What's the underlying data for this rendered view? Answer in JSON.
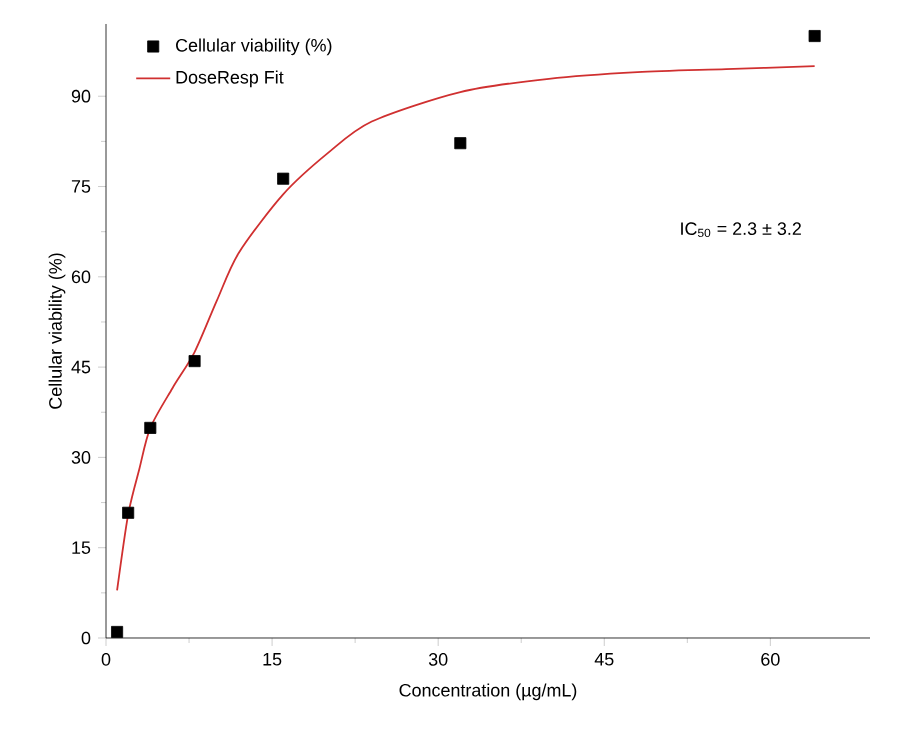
{
  "chart_data": {
    "type": "scatter",
    "xlabel": "Concentration (µg/mL)",
    "ylabel": "Cellular viability (%)",
    "xlim": [
      0,
      69
    ],
    "ylim": [
      0,
      102
    ],
    "xticks": [
      0,
      15,
      30,
      45,
      60
    ],
    "yticks": [
      0,
      15,
      30,
      45,
      60,
      75,
      90
    ],
    "legend": "top left",
    "grid": false,
    "annotations": [
      "IC$_{50}$ = 2.3 ± 3.2"
    ],
    "series": [
      {
        "name": "Cellular viability (%)",
        "color": "#000000",
        "marker": "square",
        "x": [
          1,
          2,
          4,
          8,
          16,
          32,
          64
        ],
        "values": [
          1,
          20.8,
          34.9,
          46,
          76.3,
          82.2,
          100
        ]
      },
      {
        "name": "DoseResp Fit",
        "type": "line",
        "color": "#d03030",
        "marker": "none",
        "line_style": "solid",
        "x": [
          1,
          2,
          3,
          4,
          6,
          8,
          10,
          12,
          16,
          20,
          24,
          32,
          40,
          48,
          56,
          64
        ],
        "values": [
          7.9,
          20.5,
          28,
          34.9,
          41.5,
          47.5,
          56,
          64,
          73.7,
          80.5,
          85.8,
          90.7,
          92.9,
          94,
          94.5,
          95
        ]
      }
    ]
  }
}
